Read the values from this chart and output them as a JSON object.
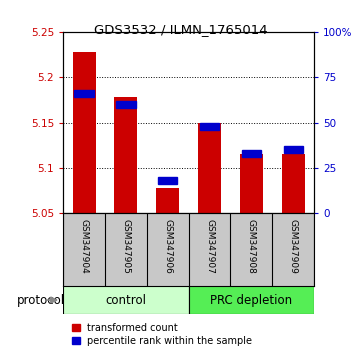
{
  "title": "GDS3532 / ILMN_1765014",
  "samples": [
    "GSM347904",
    "GSM347905",
    "GSM347906",
    "GSM347907",
    "GSM347908",
    "GSM347909"
  ],
  "group_labels": [
    "control",
    "PRC depletion"
  ],
  "bar_bottom": 5.05,
  "transformed_counts": [
    5.228,
    5.178,
    5.078,
    5.15,
    5.115,
    5.115
  ],
  "percentile_ranks": [
    66,
    60,
    18,
    48,
    33,
    35
  ],
  "ylim_left": [
    5.05,
    5.25
  ],
  "yticks_left": [
    5.05,
    5.1,
    5.15,
    5.2,
    5.25
  ],
  "ylim_right": [
    0,
    100
  ],
  "yticks_right": [
    0,
    25,
    50,
    75,
    100
  ],
  "ytick_labels_right": [
    "0",
    "25",
    "50",
    "75",
    "100%"
  ],
  "bar_color": "#cc0000",
  "percentile_color": "#0000cc",
  "left_tick_color": "#cc0000",
  "right_tick_color": "#0000cc",
  "legend_labels": [
    "transformed count",
    "percentile rank within the sample"
  ],
  "protocol_label": "protocol",
  "background_color": "#ffffff",
  "sample_bg_color": "#c8c8c8",
  "control_bg": "#ccffcc",
  "prc_bg": "#55ee55"
}
